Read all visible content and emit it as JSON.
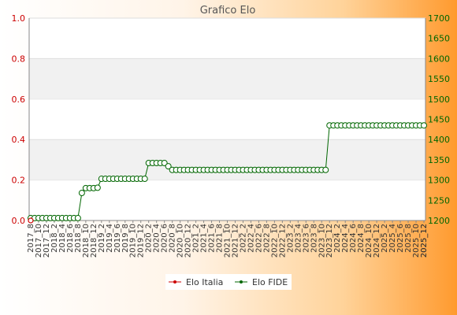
{
  "chart_data": {
    "type": "line",
    "title": "Grafico Elo",
    "left_axis": {
      "min": 0.0,
      "max": 1.0,
      "ticks": [
        "0.0",
        "0.2",
        "0.4",
        "0.6",
        "0.8",
        "1.0"
      ],
      "color": "#cc0000"
    },
    "right_axis": {
      "min": 1200,
      "max": 1700,
      "ticks": [
        "1200",
        "1250",
        "1300",
        "1350",
        "1400",
        "1450",
        "1500",
        "1550",
        "1600",
        "1650",
        "1700"
      ],
      "color": "#006600"
    },
    "x_first_label": "2017_8",
    "x_last_label": "2025_12",
    "x_range": [
      "2017-08",
      "2025-12"
    ],
    "grid": true,
    "legend_position": "bottom",
    "series": [
      {
        "name": "Elo Italia",
        "axis": "left",
        "color": "#cc0000",
        "points": [
          [
            "2017-08",
            0.0
          ]
        ]
      },
      {
        "name": "Elo FIDE",
        "axis": "right",
        "color": "#006600",
        "steps": [
          [
            "2017-08",
            1206
          ],
          [
            "2018-08",
            1206
          ],
          [
            "2018-09",
            1268
          ],
          [
            "2018-10",
            1280
          ],
          [
            "2018-12",
            1280
          ],
          [
            "2019-01",
            1281
          ],
          [
            "2019-02",
            1303
          ],
          [
            "2020-01",
            1303
          ],
          [
            "2020-02",
            1342
          ],
          [
            "2020-06",
            1342
          ],
          [
            "2020-07",
            1334
          ],
          [
            "2020-08",
            1325
          ],
          [
            "2023-11",
            1325
          ],
          [
            "2023-12",
            1435
          ],
          [
            "2025-12",
            1435
          ]
        ]
      }
    ]
  }
}
